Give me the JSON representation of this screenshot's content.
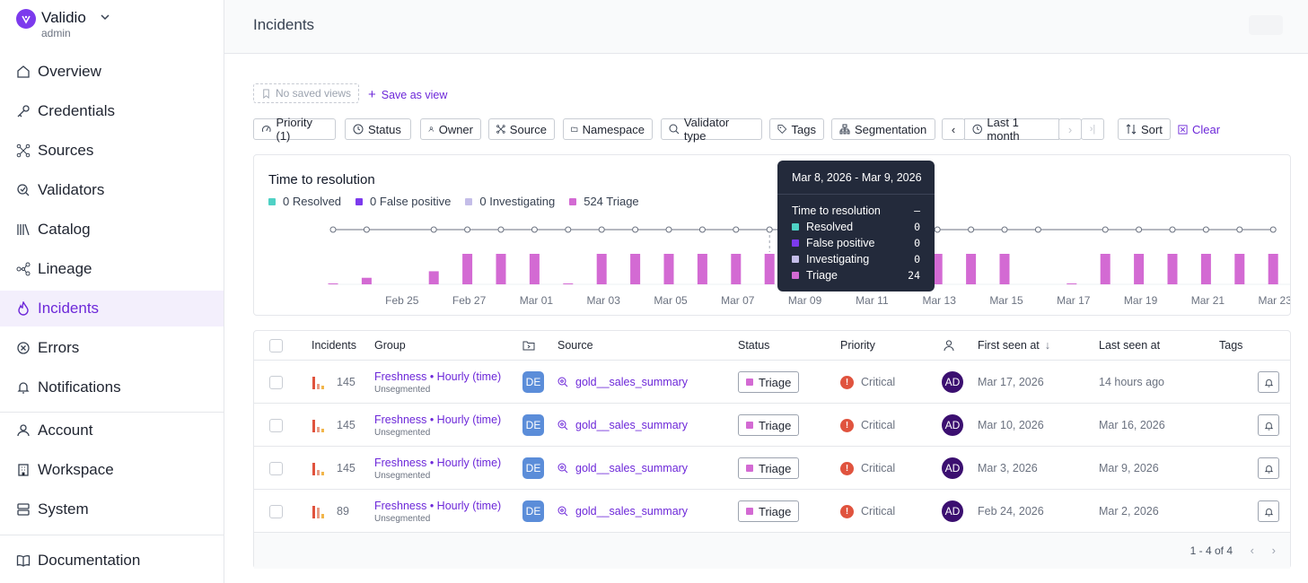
{
  "org": {
    "name": "Validio",
    "role": "admin"
  },
  "nav": {
    "items": [
      {
        "label": "Overview"
      },
      {
        "label": "Credentials"
      },
      {
        "label": "Sources"
      },
      {
        "label": "Validators"
      },
      {
        "label": "Catalog"
      },
      {
        "label": "Lineage"
      },
      {
        "label": "Incidents"
      },
      {
        "label": "Errors"
      },
      {
        "label": "Notifications"
      }
    ],
    "settings": [
      {
        "label": "Account"
      },
      {
        "label": "Workspace"
      },
      {
        "label": "System"
      }
    ],
    "docs": {
      "label": "Documentation"
    }
  },
  "page": {
    "title": "Incidents"
  },
  "views": {
    "saved": "No saved views",
    "save_as": "Save as view"
  },
  "filters": {
    "priority": "Priority (1)",
    "status": "Status",
    "owner": "Owner",
    "source": "Source",
    "namespace": "Namespace",
    "validator_type": "Validator type",
    "tags": "Tags",
    "segmentation": "Segmentation",
    "range": "Last 1 month",
    "sort": "Sort",
    "clear": "Clear"
  },
  "chart": {
    "title": "Time to resolution",
    "legend": [
      {
        "label": "0 Resolved",
        "color": "#4fd1c5"
      },
      {
        "label": "0 False positive",
        "color": "#7c3aed"
      },
      {
        "label": "0 Investigating",
        "color": "#c4bde8"
      },
      {
        "label": "524 Triage",
        "color": "#d36ad3"
      }
    ]
  },
  "chart_data": {
    "type": "bar",
    "title": "Time to resolution",
    "categories": [
      "Feb 23",
      "Feb 24",
      "Feb 25",
      "Feb 26",
      "Feb 27",
      "Feb 28",
      "Mar 01",
      "Mar 02",
      "Mar 03",
      "Mar 04",
      "Mar 05",
      "Mar 06",
      "Mar 07",
      "Mar 08",
      "Mar 09",
      "Mar 10",
      "Mar 11",
      "Mar 12",
      "Mar 13",
      "Mar 14",
      "Mar 15",
      "Mar 16",
      "Mar 17",
      "Mar 18",
      "Mar 19",
      "Mar 20",
      "Mar 21",
      "Mar 22",
      "Mar 23"
    ],
    "tick_labels": [
      "Feb 25",
      "Feb 27",
      "Mar 01",
      "Mar 03",
      "Mar 05",
      "Mar 07",
      "Mar 09",
      "Mar 11",
      "Mar 13",
      "Mar 15",
      "Mar 17",
      "Mar 19",
      "Mar 21",
      "Mar 23"
    ],
    "series": [
      {
        "name": "Triage",
        "values": [
          0.2,
          1.5,
          0,
          3,
          7,
          7,
          7,
          0.2,
          7,
          7,
          7,
          7,
          7,
          7,
          7,
          7,
          7,
          7,
          7,
          7,
          7,
          0,
          0.2,
          7,
          7,
          7,
          7,
          7,
          7
        ]
      }
    ],
    "resolution_points": true
  },
  "tooltip": {
    "range": "Mar 8, 2026 - Mar 9, 2026",
    "ttr_label": "Time to resolution",
    "ttr_value": "–",
    "rows": [
      {
        "label": "Resolved",
        "value": "0",
        "color": "#4fd1c5"
      },
      {
        "label": "False positive",
        "value": "0",
        "color": "#7c3aed"
      },
      {
        "label": "Investigating",
        "value": "0",
        "color": "#c4bde8"
      },
      {
        "label": "Triage",
        "value": "24",
        "color": "#d36ad3"
      }
    ]
  },
  "table": {
    "headers": {
      "incidents": "Incidents",
      "group": "Group",
      "source": "Source",
      "status": "Status",
      "priority": "Priority",
      "first_seen": "First seen at",
      "last_seen": "Last seen at",
      "tags": "Tags"
    },
    "rows": [
      {
        "count": "145",
        "group": "Freshness • Hourly (time)",
        "segment": "Unsegmented",
        "ns": "DE",
        "source": "gold__sales_summary",
        "status": "Triage",
        "priority": "Critical",
        "owner": "AD",
        "first_seen": "Mar 17, 2026",
        "last_seen": "14 hours ago"
      },
      {
        "count": "145",
        "group": "Freshness • Hourly (time)",
        "segment": "Unsegmented",
        "ns": "DE",
        "source": "gold__sales_summary",
        "status": "Triage",
        "priority": "Critical",
        "owner": "AD",
        "first_seen": "Mar 10, 2026",
        "last_seen": "Mar 16, 2026"
      },
      {
        "count": "145",
        "group": "Freshness • Hourly (time)",
        "segment": "Unsegmented",
        "ns": "DE",
        "source": "gold__sales_summary",
        "status": "Triage",
        "priority": "Critical",
        "owner": "AD",
        "first_seen": "Mar 3, 2026",
        "last_seen": "Mar 9, 2026"
      },
      {
        "count": "89",
        "group": "Freshness • Hourly (time)",
        "segment": "Unsegmented",
        "ns": "DE",
        "source": "gold__sales_summary",
        "status": "Triage",
        "priority": "Critical",
        "owner": "AD",
        "first_seen": "Feb 24, 2026",
        "last_seen": "Mar 2, 2026"
      }
    ],
    "pagination": "1 - 4 of 4"
  }
}
